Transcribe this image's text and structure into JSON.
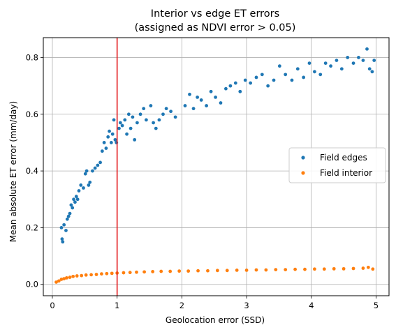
{
  "chart_data": {
    "type": "scatter",
    "title": [
      "Interior vs edge ET errors",
      "(assigned as NDVI error > 0.05)"
    ],
    "xlabel": "Geolocation error (SSD)",
    "ylabel": "Mean absolute ET error (mm/day)",
    "xlim": [
      -0.14,
      5.2
    ],
    "ylim": [
      -0.04,
      0.87
    ],
    "xticks": [
      0,
      1,
      2,
      3,
      4,
      5
    ],
    "yticks": [
      0.0,
      0.2,
      0.4,
      0.6,
      0.8
    ],
    "xtick_labels": [
      "0",
      "1",
      "2",
      "3",
      "4",
      "5"
    ],
    "ytick_labels": [
      "0.0",
      "0.2",
      "0.4",
      "0.6",
      "0.8"
    ],
    "grid": true,
    "legend_position": "center-right",
    "vline": {
      "x": 1.0,
      "color": "#e41a1c"
    },
    "series": [
      {
        "name": "Field edges",
        "color": "#1f77b4",
        "points": [
          [
            0.14,
            0.2
          ],
          [
            0.15,
            0.16
          ],
          [
            0.16,
            0.15
          ],
          [
            0.18,
            0.21
          ],
          [
            0.21,
            0.19
          ],
          [
            0.23,
            0.23
          ],
          [
            0.25,
            0.24
          ],
          [
            0.27,
            0.25
          ],
          [
            0.29,
            0.28
          ],
          [
            0.31,
            0.27
          ],
          [
            0.33,
            0.3
          ],
          [
            0.35,
            0.29
          ],
          [
            0.37,
            0.31
          ],
          [
            0.39,
            0.3
          ],
          [
            0.41,
            0.33
          ],
          [
            0.44,
            0.35
          ],
          [
            0.48,
            0.34
          ],
          [
            0.51,
            0.39
          ],
          [
            0.53,
            0.4
          ],
          [
            0.56,
            0.35
          ],
          [
            0.58,
            0.36
          ],
          [
            0.62,
            0.4
          ],
          [
            0.66,
            0.41
          ],
          [
            0.7,
            0.42
          ],
          [
            0.74,
            0.43
          ],
          [
            0.77,
            0.47
          ],
          [
            0.8,
            0.5
          ],
          [
            0.83,
            0.48
          ],
          [
            0.86,
            0.52
          ],
          [
            0.88,
            0.54
          ],
          [
            0.91,
            0.5
          ],
          [
            0.93,
            0.53
          ],
          [
            0.95,
            0.58
          ],
          [
            0.97,
            0.51
          ],
          [
            0.99,
            0.5
          ],
          [
            1.03,
            0.55
          ],
          [
            1.05,
            0.57
          ],
          [
            1.08,
            0.56
          ],
          [
            1.12,
            0.58
          ],
          [
            1.15,
            0.53
          ],
          [
            1.18,
            0.6
          ],
          [
            1.21,
            0.55
          ],
          [
            1.24,
            0.59
          ],
          [
            1.27,
            0.51
          ],
          [
            1.31,
            0.57
          ],
          [
            1.36,
            0.6
          ],
          [
            1.41,
            0.62
          ],
          [
            1.45,
            0.58
          ],
          [
            1.52,
            0.63
          ],
          [
            1.56,
            0.57
          ],
          [
            1.6,
            0.55
          ],
          [
            1.65,
            0.58
          ],
          [
            1.71,
            0.6
          ],
          [
            1.76,
            0.62
          ],
          [
            1.83,
            0.61
          ],
          [
            1.9,
            0.59
          ],
          [
            2.05,
            0.63
          ],
          [
            2.12,
            0.67
          ],
          [
            2.18,
            0.62
          ],
          [
            2.24,
            0.66
          ],
          [
            2.3,
            0.65
          ],
          [
            2.38,
            0.63
          ],
          [
            2.45,
            0.68
          ],
          [
            2.52,
            0.66
          ],
          [
            2.6,
            0.64
          ],
          [
            2.68,
            0.69
          ],
          [
            2.75,
            0.7
          ],
          [
            2.83,
            0.71
          ],
          [
            2.9,
            0.68
          ],
          [
            2.98,
            0.72
          ],
          [
            3.06,
            0.71
          ],
          [
            3.15,
            0.73
          ],
          [
            3.24,
            0.74
          ],
          [
            3.33,
            0.7
          ],
          [
            3.42,
            0.72
          ],
          [
            3.51,
            0.77
          ],
          [
            3.6,
            0.74
          ],
          [
            3.7,
            0.72
          ],
          [
            3.79,
            0.76
          ],
          [
            3.88,
            0.73
          ],
          [
            3.97,
            0.78
          ],
          [
            4.05,
            0.75
          ],
          [
            4.14,
            0.74
          ],
          [
            4.22,
            0.78
          ],
          [
            4.3,
            0.77
          ],
          [
            4.39,
            0.79
          ],
          [
            4.47,
            0.76
          ],
          [
            4.56,
            0.8
          ],
          [
            4.65,
            0.78
          ],
          [
            4.73,
            0.8
          ],
          [
            4.8,
            0.79
          ],
          [
            4.86,
            0.83
          ],
          [
            4.9,
            0.76
          ],
          [
            4.94,
            0.75
          ],
          [
            4.97,
            0.79
          ]
        ]
      },
      {
        "name": "Field interior",
        "color": "#ff7f0e",
        "points": [
          [
            0.06,
            0.008
          ],
          [
            0.1,
            0.012
          ],
          [
            0.14,
            0.018
          ],
          [
            0.18,
            0.02
          ],
          [
            0.22,
            0.023
          ],
          [
            0.27,
            0.025
          ],
          [
            0.32,
            0.028
          ],
          [
            0.38,
            0.03
          ],
          [
            0.45,
            0.031
          ],
          [
            0.52,
            0.033
          ],
          [
            0.6,
            0.034
          ],
          [
            0.68,
            0.035
          ],
          [
            0.76,
            0.037
          ],
          [
            0.84,
            0.038
          ],
          [
            0.92,
            0.039
          ],
          [
            1.0,
            0.04
          ],
          [
            1.1,
            0.041
          ],
          [
            1.2,
            0.042
          ],
          [
            1.3,
            0.043
          ],
          [
            1.42,
            0.044
          ],
          [
            1.55,
            0.045
          ],
          [
            1.68,
            0.046
          ],
          [
            1.82,
            0.046
          ],
          [
            1.96,
            0.047
          ],
          [
            2.1,
            0.047
          ],
          [
            2.25,
            0.048
          ],
          [
            2.4,
            0.048
          ],
          [
            2.55,
            0.049
          ],
          [
            2.7,
            0.049
          ],
          [
            2.85,
            0.05
          ],
          [
            3.0,
            0.05
          ],
          [
            3.15,
            0.051
          ],
          [
            3.3,
            0.051
          ],
          [
            3.45,
            0.052
          ],
          [
            3.6,
            0.052
          ],
          [
            3.75,
            0.053
          ],
          [
            3.9,
            0.053
          ],
          [
            4.05,
            0.054
          ],
          [
            4.2,
            0.054
          ],
          [
            4.35,
            0.055
          ],
          [
            4.5,
            0.055
          ],
          [
            4.65,
            0.056
          ],
          [
            4.8,
            0.057
          ],
          [
            4.88,
            0.06
          ],
          [
            4.95,
            0.054
          ]
        ]
      }
    ]
  }
}
